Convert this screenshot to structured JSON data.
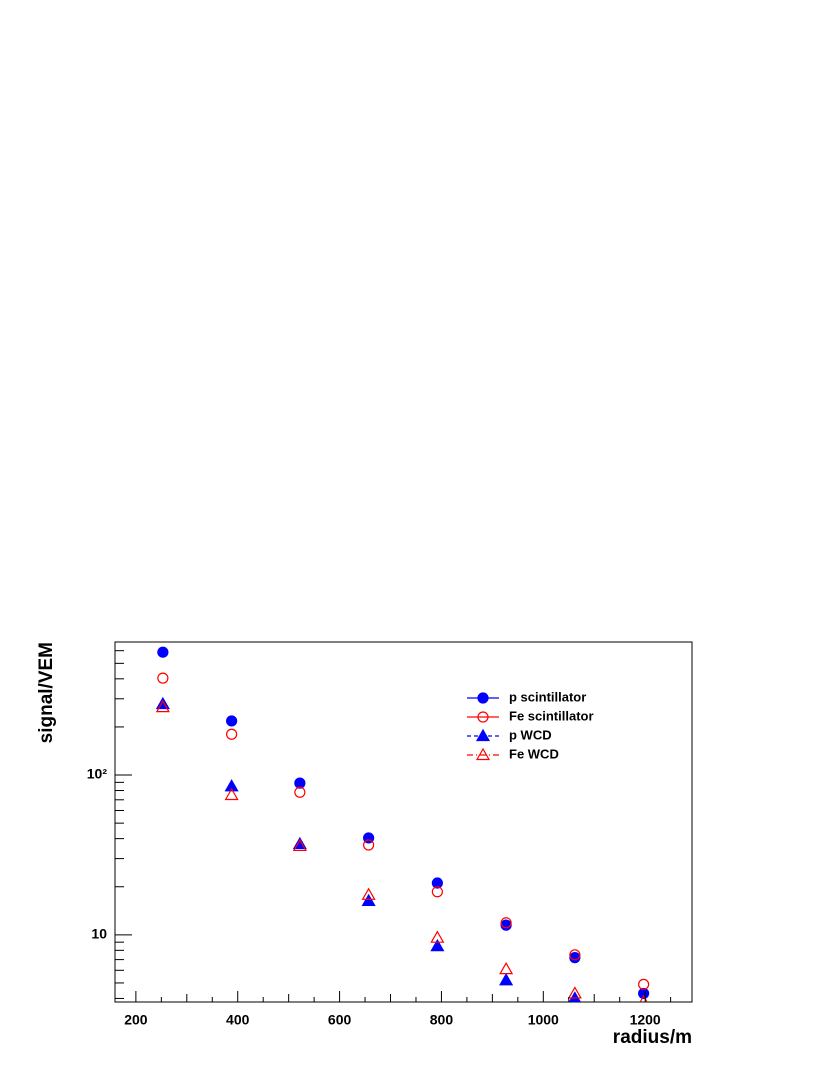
{
  "chart_data": {
    "type": "scatter",
    "x_label": "radius/m",
    "y_label": "signal/VEM",
    "x": [
      253,
      388,
      522,
      657,
      792,
      927,
      1062,
      1197
    ],
    "xlim": [
      159,
      1292
    ],
    "xticks": [
      200,
      400,
      600,
      800,
      1000,
      1200
    ],
    "ylim": [
      3.8,
      680
    ],
    "yticks": [
      10,
      {
        "value": 100,
        "label": "10²"
      }
    ],
    "log_y": true,
    "grid": false,
    "legend": "top-right",
    "series": [
      {
        "name": "p scintillator",
        "color": "#0000ff",
        "marker": "circle-filled",
        "line_style": "solid",
        "values": [
          587,
          218,
          89,
          40.4,
          21.1,
          11.5,
          7.2,
          4.3
        ]
      },
      {
        "name": "Fe scintillator",
        "color": "#ff0000",
        "marker": "circle-open",
        "line_style": "solid",
        "values": [
          404,
          180,
          78,
          36.5,
          18.6,
          11.9,
          7.5,
          4.9
        ]
      },
      {
        "name": "p WCD",
        "color": "#0000ff",
        "marker": "triangle-filled",
        "line_style": "dashed",
        "values": [
          278,
          85,
          37,
          16.3,
          8.5,
          5.2,
          4.0,
          null
        ]
      },
      {
        "name": "Fe WCD",
        "color": "#ff0000",
        "marker": "triangle-open",
        "line_style": "dashdot",
        "values": [
          266,
          75,
          36,
          17.8,
          9.6,
          6.1,
          4.3,
          3.8
        ]
      }
    ]
  }
}
